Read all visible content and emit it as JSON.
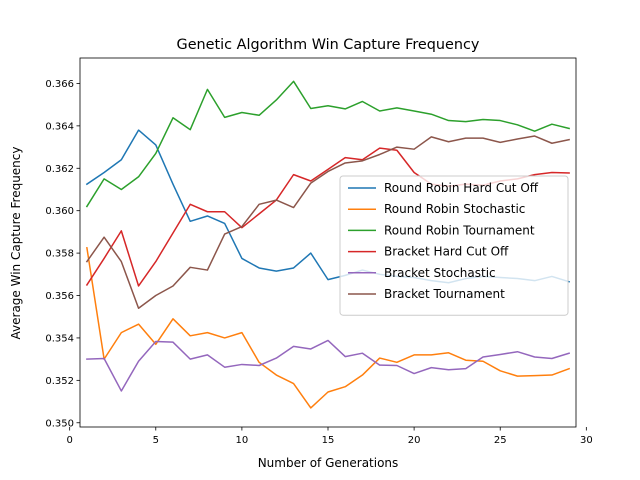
{
  "chart_data": {
    "type": "line",
    "title": "Genetic Algorithm Win Capture Frequency",
    "xlabel": "Number of Generations",
    "ylabel": "Average Win Capture Frequency",
    "xlim": [
      0.6,
      29.4
    ],
    "ylim": [
      0.3498,
      0.3672
    ],
    "xticks": [
      0,
      5,
      10,
      15,
      20,
      25,
      30
    ],
    "xtick_labels": [
      "0",
      "5",
      "10",
      "15",
      "20",
      "25",
      "30"
    ],
    "yticks": [
      0.35,
      0.352,
      0.354,
      0.356,
      0.358,
      0.36,
      0.362,
      0.364,
      0.366
    ],
    "ytick_labels": [
      "0.350",
      "0.352",
      "0.354",
      "0.356",
      "0.358",
      "0.360",
      "0.362",
      "0.364",
      "0.366"
    ],
    "grid": false,
    "legend_position": "center-right",
    "x": [
      1,
      2,
      3,
      4,
      5,
      6,
      7,
      8,
      9,
      10,
      11,
      12,
      13,
      14,
      15,
      16,
      17,
      18,
      19,
      20,
      21,
      22,
      23,
      24,
      25,
      26,
      27,
      28,
      29
    ],
    "series": [
      {
        "name": "Round Robin Hard Cut Off",
        "color": "#1f77b4",
        "values": [
          0.36125,
          0.3618,
          0.3624,
          0.3638,
          0.3631,
          0.36125,
          0.3595,
          0.35975,
          0.3594,
          0.35775,
          0.3573,
          0.35715,
          0.3573,
          0.358,
          0.35675,
          0.35695,
          0.3572,
          0.357,
          0.3569,
          0.35685,
          0.3567,
          0.3566,
          0.3568,
          0.3569,
          0.35685,
          0.3568,
          0.3567,
          0.3569,
          0.35665
        ]
      },
      {
        "name": "Round Robin Stochastic",
        "color": "#ff7f0e",
        "values": [
          0.35825,
          0.353,
          0.35425,
          0.35465,
          0.3537,
          0.3549,
          0.3541,
          0.35425,
          0.354,
          0.35425,
          0.35285,
          0.35225,
          0.35185,
          0.3507,
          0.35145,
          0.3517,
          0.35225,
          0.35305,
          0.35285,
          0.3532,
          0.3532,
          0.3533,
          0.35295,
          0.3529,
          0.35245,
          0.3522,
          0.35222,
          0.35225,
          0.35255
        ]
      },
      {
        "name": "Round Robin Tournament",
        "color": "#2ca02c",
        "values": [
          0.3602,
          0.3615,
          0.361,
          0.3616,
          0.3627,
          0.36438,
          0.36382,
          0.36572,
          0.3644,
          0.36463,
          0.3645,
          0.36522,
          0.3661,
          0.36482,
          0.36495,
          0.3648,
          0.36515,
          0.3647,
          0.36485,
          0.3647,
          0.36455,
          0.36425,
          0.3642,
          0.3643,
          0.36425,
          0.36405,
          0.36375,
          0.36408,
          0.36388
        ]
      },
      {
        "name": "Bracket Hard Cut Off",
        "color": "#d62728",
        "values": [
          0.3565,
          0.35775,
          0.35905,
          0.35645,
          0.3576,
          0.35895,
          0.3603,
          0.35995,
          0.35995,
          0.3592,
          0.35985,
          0.3605,
          0.3617,
          0.3614,
          0.36195,
          0.3625,
          0.3624,
          0.36295,
          0.36285,
          0.3618,
          0.36125,
          0.36115,
          0.36125,
          0.3612,
          0.3614,
          0.3615,
          0.3617,
          0.3618,
          0.36178
        ]
      },
      {
        "name": "Bracket Stochastic",
        "color": "#9467bd",
        "values": [
          0.353,
          0.35303,
          0.3515,
          0.3529,
          0.35383,
          0.3538,
          0.353,
          0.3532,
          0.35262,
          0.35275,
          0.3527,
          0.35305,
          0.3536,
          0.35348,
          0.35388,
          0.35312,
          0.35328,
          0.35272,
          0.3527,
          0.35232,
          0.3526,
          0.3525,
          0.35255,
          0.3531,
          0.35322,
          0.35335,
          0.3531,
          0.35303,
          0.35328
        ]
      },
      {
        "name": "Bracket Tournament",
        "color": "#8c564b",
        "values": [
          0.3576,
          0.35875,
          0.3576,
          0.3554,
          0.356,
          0.35645,
          0.35733,
          0.3572,
          0.3589,
          0.35925,
          0.3603,
          0.3605,
          0.36015,
          0.3613,
          0.36185,
          0.36225,
          0.36235,
          0.36265,
          0.363,
          0.3629,
          0.36348,
          0.36325,
          0.36342,
          0.36342,
          0.36322,
          0.36338,
          0.36352,
          0.36318,
          0.36335
        ]
      }
    ]
  }
}
